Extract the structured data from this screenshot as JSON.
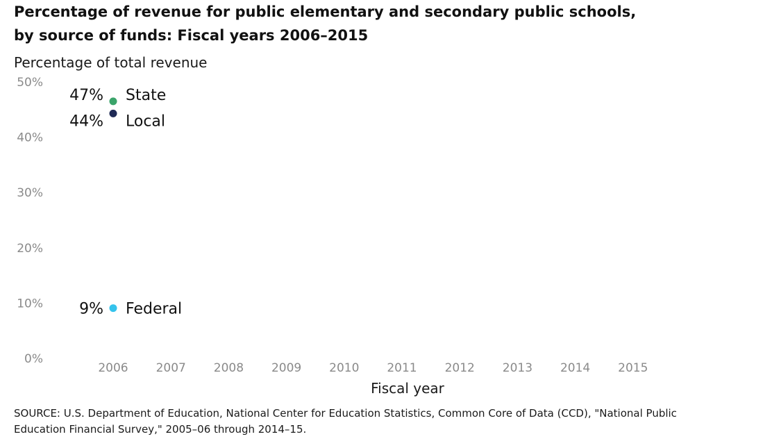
{
  "title_lines": [
    "Percentage of revenue for public elementary and secondary public schools,",
    "by source of funds: Fiscal years 2006–2015"
  ],
  "source_lines": [
    "SOURCE: U.S. Department of Education, National Center for Education Statistics, Common Core of Data (CCD), \"National Public",
    "Education Financial Survey,\" 2005–06 through 2014–15."
  ],
  "chart_data": {
    "type": "scatter",
    "title": "Percentage of revenue for public elementary and secondary public schools, by source of funds: Fiscal years 2006–2015",
    "ylabel": "Percentage of total revenue",
    "xlabel": "Fiscal year",
    "ylim": [
      0,
      50
    ],
    "yticks": [
      0,
      10,
      20,
      30,
      40,
      50
    ],
    "ytick_labels": [
      "0%",
      "10%",
      "20%",
      "30%",
      "40%",
      "50%"
    ],
    "categories": [
      "2006",
      "2007",
      "2008",
      "2009",
      "2010",
      "2011",
      "2012",
      "2013",
      "2014",
      "2015"
    ],
    "grid": false,
    "legend": "none (series labeled directly)",
    "series": [
      {
        "name": "State",
        "color": "#3aa46a",
        "points": [
          {
            "x": "2006",
            "y": 46.5,
            "label": "47%"
          }
        ]
      },
      {
        "name": "Local",
        "color": "#1f2a55",
        "points": [
          {
            "x": "2006",
            "y": 44.3,
            "label": "44%"
          }
        ]
      },
      {
        "name": "Federal",
        "color": "#35c3ec",
        "points": [
          {
            "x": "2006",
            "y": 9.1,
            "label": "9%"
          }
        ]
      }
    ]
  }
}
